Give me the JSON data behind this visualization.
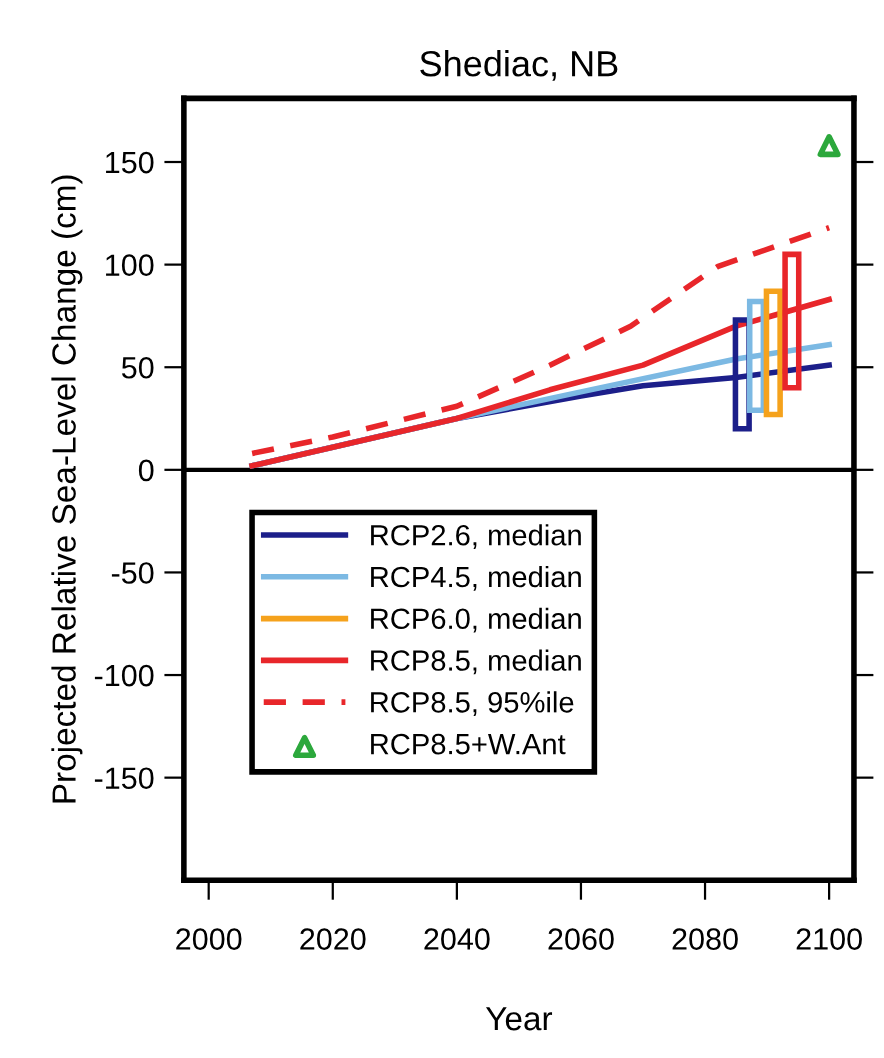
{
  "chart_data": {
    "type": "line",
    "title": "Shediac, NB",
    "xlabel": "Year",
    "ylabel": "Projected Relative Sea-Level Change (cm)",
    "xlim": [
      1996,
      2104
    ],
    "xticks": [
      2000,
      2020,
      2040,
      2060,
      2080,
      2100
    ],
    "ylim": [
      -200,
      181
    ],
    "yticks": [
      -150,
      -100,
      -50,
      0,
      50,
      100,
      150
    ],
    "grid": false,
    "legend": "bottom left",
    "ref_lines": [
      {
        "axis": "y",
        "value": 0,
        "color": "#000000",
        "line_style": "solid"
      }
    ],
    "series": [
      {
        "name": "RCP2.6, median",
        "color": "#1c1f8a",
        "line_style": "solid",
        "x": [
          2007,
          2040,
          2060,
          2070,
          2085,
          2100
        ],
        "values": [
          2,
          25,
          36,
          41,
          45,
          51
        ]
      },
      {
        "name": "RCP4.5, median",
        "color": "#7cb9e3",
        "line_style": "solid",
        "x": [
          2007,
          2020,
          2040,
          2060,
          2085,
          2100
        ],
        "values": [
          2,
          11,
          25,
          38,
          54,
          61
        ]
      },
      {
        "name": "RCP6.0, median",
        "color": "#f5a21c",
        "line_style": "solid"
      },
      {
        "name": "RCP8.5, median",
        "color": "#e8262a",
        "line_style": "solid",
        "x": [
          2007,
          2020,
          2040,
          2055,
          2070,
          2085,
          2100
        ],
        "values": [
          2,
          11,
          25,
          39,
          51,
          70,
          83
        ]
      },
      {
        "name": "RCP8.5, 95%ile",
        "color": "#e8262a",
        "line_style": "dashed",
        "x": [
          2007,
          2020,
          2040,
          2055,
          2068,
          2082,
          2100
        ],
        "values": [
          8,
          16,
          31,
          51,
          70,
          99,
          118
        ]
      },
      {
        "name": "RCP8.5+W.Ant",
        "type": "scatter",
        "marker": "triangle",
        "color": "#2ca83c",
        "x": [
          2100
        ],
        "values": [
          158
        ]
      },
      {
        "type": "bar",
        "color": "#1c1f8a",
        "x": [
          2086
        ],
        "base": [
          20
        ],
        "values": [
          53
        ]
      },
      {
        "type": "bar",
        "color": "#7cb9e3",
        "x": [
          2088.3
        ],
        "base": [
          29
        ],
        "values": [
          53
        ]
      },
      {
        "type": "bar",
        "color": "#f5a21c",
        "x": [
          2091
        ],
        "base": [
          27
        ],
        "values": [
          60
        ]
      },
      {
        "type": "bar",
        "color": "#e8262a",
        "x": [
          2094
        ],
        "base": [
          40
        ],
        "values": [
          65
        ]
      }
    ]
  }
}
